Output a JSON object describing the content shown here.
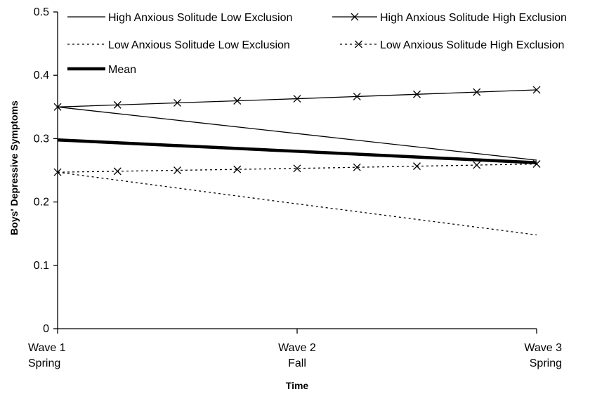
{
  "chart_data": {
    "type": "line",
    "title": "",
    "xlabel": "Time",
    "ylabel": "Boys' Depressive Symptoms",
    "ylim": [
      0,
      0.5
    ],
    "yticks": [
      "0",
      "0.1",
      "0.2",
      "0.3",
      "0.4",
      "0.5"
    ],
    "categories": [
      [
        "Wave 1",
        "Spring"
      ],
      [
        "Wave 2",
        "Fall"
      ],
      [
        "Wave 3",
        "Spring"
      ]
    ],
    "grid": false,
    "legend_position": "top",
    "series": [
      {
        "name": "High Anxious Solitude Low Exclusion",
        "values": [
          0.35,
          0.308,
          0.266
        ],
        "dash": "solid",
        "marker": "none",
        "width": "thin"
      },
      {
        "name": "High Anxious Solitude High Exclusion",
        "values": [
          0.35,
          0.363,
          0.377
        ],
        "dash": "solid",
        "marker": "x",
        "width": "thin"
      },
      {
        "name": "Low Anxious Solitude Low Exclusion",
        "values": [
          0.247,
          0.197,
          0.148
        ],
        "dash": "dotted",
        "marker": "none",
        "width": "thin"
      },
      {
        "name": "Low Anxious Solitude High Exclusion",
        "values": [
          0.247,
          0.253,
          0.26
        ],
        "dash": "dotted",
        "marker": "x",
        "width": "thin"
      },
      {
        "name": "Mean",
        "values": [
          0.298,
          0.28,
          0.262
        ],
        "dash": "solid",
        "marker": "none",
        "width": "thick"
      }
    ]
  }
}
